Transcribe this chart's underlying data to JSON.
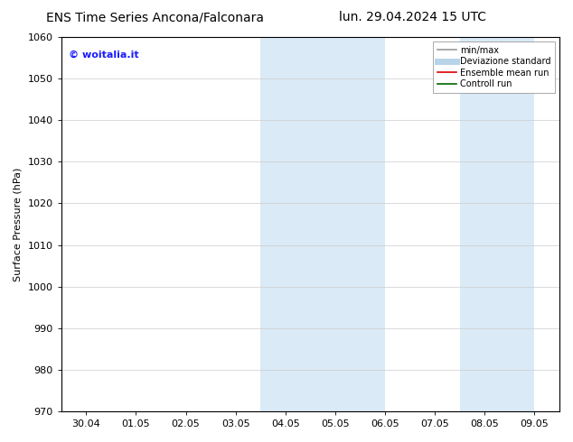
{
  "title_left": "ENS Time Series Ancona/Falconara",
  "title_right": "lun. 29.04.2024 15 UTC",
  "ylabel": "Surface Pressure (hPa)",
  "ylim": [
    970,
    1060
  ],
  "yticks": [
    970,
    980,
    990,
    1000,
    1010,
    1020,
    1030,
    1040,
    1050,
    1060
  ],
  "xtick_labels": [
    "30.04",
    "01.05",
    "02.05",
    "03.05",
    "04.05",
    "05.05",
    "06.05",
    "07.05",
    "08.05",
    "09.05"
  ],
  "x_positions": [
    0,
    1,
    2,
    3,
    4,
    5,
    6,
    7,
    8,
    9
  ],
  "xlim": [
    -0.5,
    9.5
  ],
  "shaded_groups": [
    {
      "xmin": 3.5,
      "xmax": 6.0
    },
    {
      "xmin": 7.5,
      "xmax": 9.0
    }
  ],
  "shaded_color": "#daeaf6",
  "watermark": "© woitalia.it",
  "watermark_color": "#1a1aff",
  "background_color": "#ffffff",
  "legend_items": [
    {
      "label": "min/max",
      "color": "#999999",
      "lw": 1.2
    },
    {
      "label": "Deviazione standard",
      "color": "#b8d4e8",
      "lw": 5
    },
    {
      "label": "Ensemble mean run",
      "color": "#dd0000",
      "lw": 1.2
    },
    {
      "label": "Controll run",
      "color": "#006600",
      "lw": 1.2
    }
  ],
  "title_fontsize": 10,
  "ylabel_fontsize": 8,
  "tick_fontsize": 8,
  "watermark_fontsize": 8,
  "legend_fontsize": 7
}
